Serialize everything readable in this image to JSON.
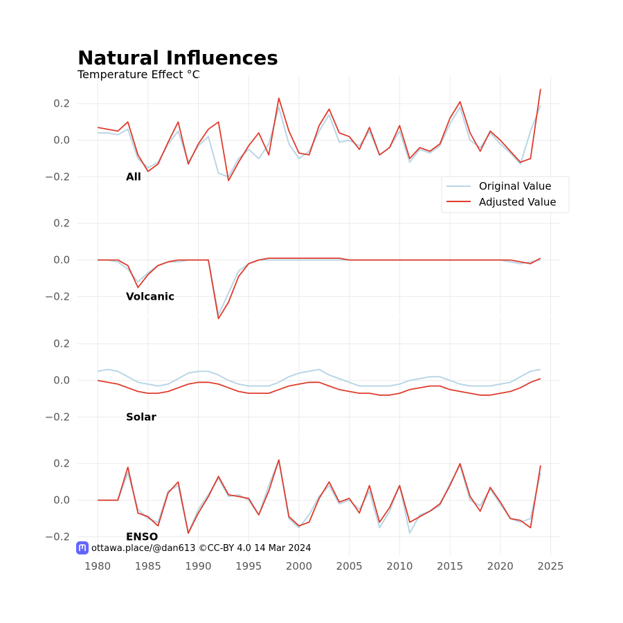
{
  "chart_data": {
    "type": "line",
    "title": "Natural Influences",
    "subtitle": "Temperature Effect °C",
    "xlim": [
      1978,
      2026
    ],
    "ylim": [
      -0.3,
      0.35
    ],
    "grid": true,
    "legend_position": "right",
    "x_ticks": [
      "1980",
      "1985",
      "1990",
      "1995",
      "2000",
      "2005",
      "2010",
      "2015",
      "2020",
      "2025"
    ],
    "y_tick_values": [
      -0.2,
      0.0,
      0.2
    ],
    "y_ticks": [
      "−0.2",
      "0.0",
      "0.2"
    ],
    "series_names": [
      "Original Value",
      "Adjusted Value"
    ],
    "series_colors": {
      "original": "#b9d6e6",
      "adjusted": "#de3b2c"
    },
    "x": [
      1980,
      1981,
      1982,
      1983,
      1984,
      1985,
      1986,
      1987,
      1988,
      1989,
      1990,
      1991,
      1992,
      1993,
      1994,
      1995,
      1996,
      1997,
      1998,
      1999,
      2000,
      2001,
      2002,
      2003,
      2004,
      2005,
      2006,
      2007,
      2008,
      2009,
      2010,
      2011,
      2012,
      2013,
      2014,
      2015,
      2016,
      2017,
      2018,
      2019,
      2020,
      2021,
      2022,
      2023,
      2024
    ],
    "panels": [
      {
        "label": "All",
        "series": [
          {
            "name": "Original Value",
            "values": [
              0.04,
              0.04,
              0.03,
              0.06,
              -0.1,
              -0.15,
              -0.12,
              -0.02,
              0.05,
              -0.12,
              -0.03,
              0.02,
              -0.18,
              -0.2,
              -0.1,
              -0.05,
              -0.1,
              -0.02,
              0.18,
              -0.02,
              -0.1,
              -0.06,
              0.05,
              0.14,
              -0.01,
              0.0,
              -0.03,
              0.05,
              -0.08,
              -0.04,
              0.05,
              -0.12,
              -0.05,
              -0.07,
              -0.03,
              0.09,
              0.18,
              0.0,
              -0.04,
              0.04,
              -0.02,
              -0.07,
              -0.13,
              0.05,
              0.19
            ]
          },
          {
            "name": "Adjusted Value",
            "values": [
              0.07,
              0.06,
              0.05,
              0.1,
              -0.08,
              -0.17,
              -0.13,
              -0.01,
              0.1,
              -0.13,
              -0.02,
              0.06,
              0.1,
              -0.22,
              -0.12,
              -0.03,
              0.04,
              -0.08,
              0.23,
              0.05,
              -0.07,
              -0.08,
              0.08,
              0.17,
              0.04,
              0.02,
              -0.05,
              0.07,
              -0.08,
              -0.04,
              0.08,
              -0.1,
              -0.04,
              -0.06,
              -0.02,
              0.12,
              0.21,
              0.04,
              -0.06,
              0.05,
              0.0,
              -0.06,
              -0.12,
              -0.1,
              0.28
            ]
          }
        ]
      },
      {
        "label": "Volcanic",
        "series": [
          {
            "name": "Original Value",
            "values": [
              0.0,
              0.0,
              -0.01,
              -0.05,
              -0.12,
              -0.07,
              -0.03,
              -0.01,
              -0.01,
              0.0,
              0.0,
              0.0,
              -0.3,
              -0.18,
              -0.06,
              -0.02,
              0.0,
              0.0,
              0.0,
              0.0,
              0.0,
              0.0,
              0.0,
              0.0,
              0.0,
              0.0,
              0.0,
              0.0,
              0.0,
              0.0,
              0.0,
              0.0,
              0.0,
              0.0,
              0.0,
              0.0,
              0.0,
              0.0,
              0.0,
              0.0,
              0.0,
              -0.01,
              -0.02,
              -0.01,
              0.0
            ]
          },
          {
            "name": "Adjusted Value",
            "values": [
              0.0,
              0.0,
              0.0,
              -0.03,
              -0.15,
              -0.08,
              -0.03,
              -0.01,
              0.0,
              0.0,
              0.0,
              0.0,
              -0.32,
              -0.23,
              -0.09,
              -0.02,
              0.0,
              0.01,
              0.01,
              0.01,
              0.01,
              0.01,
              0.01,
              0.01,
              0.01,
              0.0,
              0.0,
              0.0,
              0.0,
              0.0,
              0.0,
              0.0,
              0.0,
              0.0,
              0.0,
              0.0,
              0.0,
              0.0,
              0.0,
              0.0,
              0.0,
              0.0,
              -0.01,
              -0.02,
              0.01
            ]
          }
        ]
      },
      {
        "label": "Solar",
        "series": [
          {
            "name": "Original Value",
            "values": [
              0.05,
              0.06,
              0.05,
              0.02,
              -0.01,
              -0.02,
              -0.03,
              -0.02,
              0.01,
              0.04,
              0.05,
              0.05,
              0.03,
              0.0,
              -0.02,
              -0.03,
              -0.03,
              -0.03,
              -0.01,
              0.02,
              0.04,
              0.05,
              0.06,
              0.03,
              0.01,
              -0.01,
              -0.03,
              -0.03,
              -0.03,
              -0.03,
              -0.02,
              0.0,
              0.01,
              0.02,
              0.02,
              0.0,
              -0.02,
              -0.03,
              -0.03,
              -0.03,
              -0.02,
              -0.01,
              0.02,
              0.05,
              0.06
            ]
          },
          {
            "name": "Adjusted Value",
            "values": [
              0.0,
              -0.01,
              -0.02,
              -0.04,
              -0.06,
              -0.07,
              -0.07,
              -0.06,
              -0.04,
              -0.02,
              -0.01,
              -0.01,
              -0.02,
              -0.04,
              -0.06,
              -0.07,
              -0.07,
              -0.07,
              -0.05,
              -0.03,
              -0.02,
              -0.01,
              -0.01,
              -0.03,
              -0.05,
              -0.06,
              -0.07,
              -0.07,
              -0.08,
              -0.08,
              -0.07,
              -0.05,
              -0.04,
              -0.03,
              -0.03,
              -0.05,
              -0.06,
              -0.07,
              -0.08,
              -0.08,
              -0.07,
              -0.06,
              -0.04,
              -0.01,
              0.01
            ]
          }
        ]
      },
      {
        "label": "ENSO",
        "series": [
          {
            "name": "Original Value",
            "values": [
              0.0,
              0.0,
              0.0,
              0.15,
              -0.05,
              -0.1,
              -0.12,
              0.05,
              0.08,
              -0.18,
              -0.05,
              0.03,
              0.12,
              0.02,
              0.03,
              0.0,
              -0.08,
              0.08,
              0.22,
              -0.1,
              -0.15,
              -0.08,
              0.02,
              0.08,
              -0.02,
              0.0,
              -0.05,
              0.05,
              -0.15,
              -0.06,
              0.08,
              -0.18,
              -0.08,
              -0.06,
              -0.03,
              0.09,
              0.19,
              0.0,
              -0.03,
              0.06,
              -0.02,
              -0.1,
              -0.12,
              -0.1,
              0.15
            ]
          },
          {
            "name": "Adjusted Value",
            "values": [
              0.0,
              0.0,
              0.0,
              0.18,
              -0.07,
              -0.09,
              -0.14,
              0.04,
              0.1,
              -0.18,
              -0.07,
              0.02,
              0.13,
              0.03,
              0.02,
              0.01,
              -0.08,
              0.05,
              0.22,
              -0.09,
              -0.14,
              -0.12,
              0.01,
              0.1,
              -0.01,
              0.01,
              -0.07,
              0.08,
              -0.12,
              -0.04,
              0.08,
              -0.12,
              -0.09,
              -0.06,
              -0.02,
              0.08,
              0.2,
              0.02,
              -0.06,
              0.07,
              -0.01,
              -0.1,
              -0.11,
              -0.15,
              0.19
            ]
          }
        ]
      }
    ]
  },
  "credit": {
    "icon": "mastodon-icon",
    "text": "ottawa.place/@dan613 ©CC-BY 4.0  14 Mar 2024"
  }
}
